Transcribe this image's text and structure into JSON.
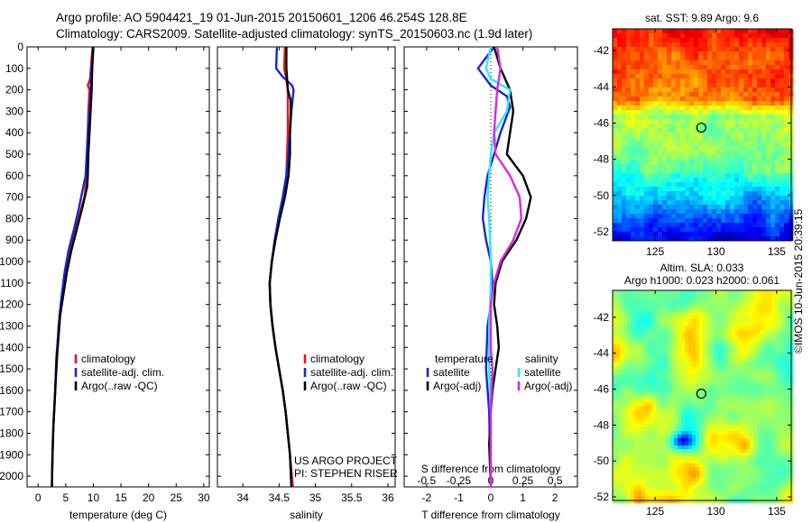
{
  "title_line1": "Argo profile: AO 5904421_19 01-Jun-2015 20150601_1206 46.254S 128.8E",
  "title_line2": "Climatology: CARS2009. Satellite-adjusted climatology: synTS_20150603.nc (1.9d later)",
  "credit": "©IMOS 10-Jun-2015 20:39:15",
  "colors": {
    "red": "#e8141e",
    "blue": "#1428d2",
    "black": "#000000",
    "cyan": "#32e6ff",
    "magenta": "#dc28dc"
  },
  "chart_data": [
    {
      "type": "line",
      "xlabel": "temperature (deg C)",
      "ylabel": "",
      "xlim": [
        -2,
        31
      ],
      "ylim": [
        0,
        2050
      ],
      "y_reversed": true,
      "xticks": [
        0,
        5,
        10,
        15,
        20,
        25,
        30
      ],
      "yticks": [
        0,
        100,
        200,
        300,
        400,
        500,
        600,
        700,
        800,
        900,
        1000,
        1100,
        1200,
        1300,
        1400,
        1500,
        1600,
        1700,
        1800,
        1900,
        2000
      ],
      "legend": {
        "placement": "lower-middle",
        "entries": [
          "climatology",
          "satellite-adj. clim.",
          "Argo(..raw -QC)"
        ]
      },
      "series": [
        {
          "name": "climatology",
          "color": "red",
          "points": [
            [
              9.9,
              0
            ],
            [
              9.7,
              50
            ],
            [
              9.4,
              150
            ],
            [
              9.0,
              180
            ],
            [
              9.3,
              200
            ],
            [
              9.1,
              300
            ],
            [
              9.0,
              400
            ],
            [
              8.9,
              500
            ],
            [
              8.8,
              600
            ],
            [
              8.4,
              700
            ],
            [
              7.3,
              800
            ],
            [
              6.2,
              900
            ],
            [
              5.3,
              1000
            ],
            [
              4.6,
              1100
            ],
            [
              4.1,
              1200
            ],
            [
              3.7,
              1300
            ],
            [
              3.5,
              1400
            ],
            [
              3.3,
              1500
            ],
            [
              3.1,
              1600
            ],
            [
              2.9,
              1700
            ],
            [
              2.7,
              1800
            ],
            [
              2.6,
              1900
            ],
            [
              2.5,
              2050
            ]
          ]
        },
        {
          "name": "satellite-adj. clim.",
          "color": "blue",
          "points": [
            [
              9.9,
              0
            ],
            [
              9.7,
              100
            ],
            [
              9.5,
              200
            ],
            [
              9.3,
              300
            ],
            [
              9.0,
              400
            ],
            [
              8.8,
              500
            ],
            [
              8.6,
              600
            ],
            [
              8.2,
              650
            ],
            [
              7.4,
              750
            ],
            [
              6.5,
              850
            ],
            [
              5.5,
              950
            ],
            [
              4.8,
              1050
            ],
            [
              4.3,
              1150
            ],
            [
              3.9,
              1250
            ],
            [
              3.6,
              1350
            ],
            [
              3.3,
              1450
            ],
            [
              3.1,
              1600
            ],
            [
              2.9,
              1700
            ],
            [
              2.7,
              1800
            ],
            [
              2.6,
              1900
            ],
            [
              2.5,
              2050
            ]
          ]
        },
        {
          "name": "Argo(..raw -QC)",
          "color": "black",
          "points": [
            [
              10.0,
              0
            ],
            [
              9.8,
              100
            ],
            [
              9.7,
              200
            ],
            [
              9.5,
              300
            ],
            [
              9.3,
              400
            ],
            [
              9.1,
              500
            ],
            [
              9.0,
              600
            ],
            [
              8.9,
              650
            ],
            [
              8.0,
              750
            ],
            [
              7.0,
              850
            ],
            [
              6.0,
              950
            ],
            [
              5.2,
              1050
            ],
            [
              4.6,
              1150
            ],
            [
              4.0,
              1250
            ],
            [
              3.7,
              1350
            ],
            [
              3.4,
              1450
            ],
            [
              3.2,
              1550
            ],
            [
              3.0,
              1650
            ],
            [
              2.8,
              1750
            ],
            [
              2.6,
              1900
            ],
            [
              2.5,
              2050
            ]
          ]
        }
      ]
    },
    {
      "type": "line",
      "xlabel": "salinity",
      "ylabel": "",
      "xlim": [
        33.65,
        36.1
      ],
      "ylim": [
        0,
        2050
      ],
      "y_reversed": true,
      "xticks": [
        34,
        34.5,
        35,
        35.5,
        36
      ],
      "legend": {
        "placement": "lower-right",
        "entries": [
          "climatology",
          "satellite-adj. clim.",
          "Argo(..raw -QC)"
        ]
      },
      "annotation_lines": [
        "US ARGO PROJECT",
        "PI: STEPHEN RISER"
      ],
      "series": [
        {
          "name": "climatology",
          "color": "red",
          "points": [
            [
              34.58,
              0
            ],
            [
              34.57,
              100
            ],
            [
              34.6,
              150
            ],
            [
              34.62,
              200
            ],
            [
              34.62,
              300
            ],
            [
              34.62,
              400
            ],
            [
              34.61,
              500
            ],
            [
              34.6,
              600
            ],
            [
              34.55,
              700
            ],
            [
              34.5,
              800
            ],
            [
              34.44,
              900
            ],
            [
              34.4,
              1000
            ],
            [
              34.37,
              1100
            ],
            [
              34.38,
              1200
            ],
            [
              34.41,
              1300
            ],
            [
              34.45,
              1400
            ],
            [
              34.5,
              1500
            ],
            [
              34.55,
              1600
            ],
            [
              34.59,
              1700
            ],
            [
              34.62,
              1800
            ],
            [
              34.65,
              1900
            ],
            [
              34.69,
              2050
            ]
          ]
        },
        {
          "name": "satellite-adj. clim.",
          "color": "blue",
          "points": [
            [
              34.47,
              0
            ],
            [
              34.46,
              100
            ],
            [
              34.55,
              140
            ],
            [
              34.68,
              180
            ],
            [
              34.7,
              200
            ],
            [
              34.67,
              300
            ],
            [
              34.65,
              400
            ],
            [
              34.63,
              500
            ],
            [
              34.6,
              600
            ],
            [
              34.55,
              700
            ],
            [
              34.49,
              800
            ],
            [
              34.44,
              900
            ],
            [
              34.4,
              1000
            ],
            [
              34.37,
              1100
            ],
            [
              34.38,
              1200
            ],
            [
              34.41,
              1300
            ],
            [
              34.45,
              1400
            ],
            [
              34.5,
              1500
            ],
            [
              34.55,
              1600
            ],
            [
              34.59,
              1700
            ],
            [
              34.62,
              1800
            ],
            [
              34.65,
              1900
            ],
            [
              34.67,
              2050
            ]
          ]
        },
        {
          "name": "Argo(..raw -QC)",
          "color": "black",
          "points": [
            [
              34.6,
              0
            ],
            [
              34.6,
              100
            ],
            [
              34.62,
              200
            ],
            [
              34.66,
              250
            ],
            [
              34.66,
              300
            ],
            [
              34.65,
              400
            ],
            [
              34.65,
              500
            ],
            [
              34.63,
              600
            ],
            [
              34.58,
              700
            ],
            [
              34.51,
              800
            ],
            [
              34.45,
              900
            ],
            [
              34.4,
              1000
            ],
            [
              34.37,
              1100
            ],
            [
              34.38,
              1200
            ],
            [
              34.41,
              1300
            ],
            [
              34.45,
              1400
            ],
            [
              34.5,
              1500
            ],
            [
              34.55,
              1600
            ],
            [
              34.59,
              1700
            ],
            [
              34.62,
              1800
            ],
            [
              34.65,
              1900
            ],
            [
              34.67,
              2050
            ]
          ]
        }
      ]
    },
    {
      "type": "line",
      "xlabel": "T difference from climatology",
      "top_xlabel": "S difference from climatology",
      "xlim": [
        -2.7,
        2.7
      ],
      "ylim": [
        0,
        2050
      ],
      "y_reversed": true,
      "xticks": [
        -2,
        -1,
        0,
        1,
        2
      ],
      "top_xticks": [
        {
          "v": -0.5,
          "label": "-0.5"
        },
        {
          "v": -0.25,
          "label": "-0.25"
        },
        {
          "v": 0,
          "label": "0"
        },
        {
          "v": 0.25,
          "label": "0.25"
        },
        {
          "v": 0.5,
          "label": "0.5"
        }
      ],
      "s_scale": 4,
      "zero_line": "dotted",
      "legend": {
        "placement": "lower",
        "headers": [
          "temperature",
          "salinity"
        ],
        "t_entries": [
          "satellite",
          "Argo(-adj)"
        ],
        "s_entries": [
          "satellite",
          "Argo(-adj)"
        ]
      },
      "series": [
        {
          "name": "satellite",
          "group": "temperature",
          "color": "blue",
          "points": [
            [
              0.1,
              0
            ],
            [
              -0.4,
              100
            ],
            [
              0,
              180
            ],
            [
              0.5,
              230
            ],
            [
              0.6,
              280
            ],
            [
              0.3,
              400
            ],
            [
              0.1,
              500
            ],
            [
              -0.1,
              600
            ],
            [
              -0.2,
              700
            ],
            [
              -0.25,
              800
            ],
            [
              -0.15,
              900
            ],
            [
              0.0,
              1000
            ],
            [
              0.05,
              1100
            ],
            [
              0.0,
              1200
            ],
            [
              -0.1,
              1300
            ],
            [
              -0.15,
              1500
            ],
            [
              -0.05,
              1700
            ],
            [
              -0.02,
              1900
            ],
            [
              0.0,
              2050
            ]
          ]
        },
        {
          "name": "Argo(-adj)",
          "group": "temperature",
          "color": "black",
          "points": [
            [
              0.1,
              0
            ],
            [
              0.3,
              100
            ],
            [
              0.6,
              200
            ],
            [
              0.7,
              300
            ],
            [
              0.6,
              400
            ],
            [
              0.5,
              500
            ],
            [
              1.0,
              600
            ],
            [
              1.25,
              700
            ],
            [
              1.1,
              800
            ],
            [
              0.8,
              900
            ],
            [
              0.35,
              1000
            ],
            [
              0.15,
              1100
            ],
            [
              0.1,
              1200
            ],
            [
              0.2,
              1300
            ],
            [
              0.25,
              1400
            ],
            [
              0.15,
              1500
            ],
            [
              0.05,
              1600
            ],
            [
              0.0,
              1700
            ],
            [
              -0.05,
              1850
            ],
            [
              0.0,
              2050
            ]
          ]
        },
        {
          "name": "satellite",
          "group": "salinity",
          "color": "cyan",
          "points": [
            [
              0.0,
              0
            ],
            [
              -0.15,
              100
            ],
            [
              0.0,
              150
            ],
            [
              0.6,
              200
            ],
            [
              0.5,
              300
            ],
            [
              0.1,
              400
            ],
            [
              0.0,
              500
            ],
            [
              -0.05,
              600
            ],
            [
              -0.1,
              700
            ],
            [
              -0.05,
              800
            ],
            [
              0.0,
              1000
            ],
            [
              0.0,
              1100
            ],
            [
              -0.05,
              1300
            ],
            [
              -0.05,
              1500
            ],
            [
              0.0,
              1700
            ],
            [
              0.0,
              2050
            ]
          ]
        },
        {
          "name": "Argo(-adj)",
          "group": "salinity",
          "color": "magenta",
          "points": [
            [
              0.2,
              0
            ],
            [
              0.3,
              100
            ],
            [
              0.2,
              200
            ],
            [
              0.15,
              300
            ],
            [
              0.1,
              400
            ],
            [
              0.15,
              500
            ],
            [
              0.6,
              600
            ],
            [
              0.9,
              700
            ],
            [
              0.95,
              800
            ],
            [
              0.7,
              900
            ],
            [
              0.3,
              1000
            ],
            [
              0.1,
              1100
            ],
            [
              0.0,
              1200
            ],
            [
              0.0,
              1400
            ],
            [
              0.05,
              1500
            ],
            [
              0.0,
              1700
            ],
            [
              0.0,
              2050
            ]
          ]
        }
      ]
    },
    {
      "type": "heatmap",
      "title": "sat. SST: 9.89 Argo: 9.6",
      "xlim": [
        121.5,
        136.2
      ],
      "ylim": [
        -52.5,
        -40.8
      ],
      "xticks": [
        125,
        130,
        135
      ],
      "yticks": [
        -42,
        -44,
        -46,
        -48,
        -50,
        -52
      ],
      "marker": {
        "lon": 128.8,
        "lat": -46.254
      },
      "field": "sst"
    },
    {
      "type": "heatmap",
      "title_lines": [
        "Altim. SLA: 0.033",
        "Argo h1000: 0.023 h2000: 0.061"
      ],
      "xlim": [
        121.5,
        136.2
      ],
      "ylim": [
        -52.2,
        -40.5
      ],
      "xticks": [
        125,
        130,
        135
      ],
      "yticks": [
        -42,
        -44,
        -46,
        -48,
        -50,
        -52
      ],
      "marker": {
        "lon": 128.8,
        "lat": -46.254
      },
      "field": "sla"
    }
  ]
}
